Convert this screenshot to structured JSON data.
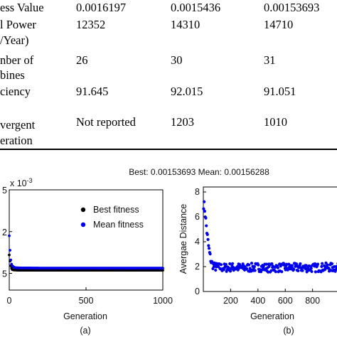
{
  "table": {
    "rows": [
      {
        "label": "ess Value",
        "values": [
          "0.0016197",
          "0.0015436",
          "0.00153693"
        ]
      },
      {
        "label_lines": [
          "l Power",
          "/Year)"
        ],
        "values": [
          "12352",
          "14310",
          "14710"
        ]
      },
      {
        "label_lines": [
          "nber of",
          "bines"
        ],
        "values": [
          "26",
          "30",
          "31"
        ]
      },
      {
        "label": "ciency",
        "values": [
          "91.645",
          "92.015",
          "91.051"
        ]
      },
      {
        "label_lines": [
          "vergent",
          "eration"
        ],
        "values": [
          "Not reported",
          "1203",
          "1010"
        ]
      }
    ]
  },
  "figure_title": "Best: 0.00153693 Mean: 0.00156288",
  "chart_data": [
    {
      "type": "scatter",
      "panel_label": "(a)",
      "xlabel": "Generation",
      "ylabel": "",
      "y_exponent_label": "x 10",
      "y_exponent": "-3",
      "xlim": [
        0,
        1000
      ],
      "ylim": [
        1.3,
        2.5
      ],
      "xticks": [
        "0",
        "500",
        "1000"
      ],
      "yticks": [
        "5",
        "2",
        "5"
      ],
      "legend": {
        "position": "top-right",
        "entries": [
          "Best fitness",
          "Mean fitness"
        ]
      },
      "colors": {
        "best": "#000000",
        "mean": "#0000ee"
      },
      "series": [
        {
          "name": "Best fitness",
          "x": [
            0,
            3,
            6,
            10,
            15,
            20,
            30,
            40,
            60,
            80,
            100,
            150,
            200,
            300,
            400,
            500,
            600,
            700,
            800,
            900,
            1000
          ],
          "y": [
            1.72,
            1.68,
            1.63,
            1.59,
            1.56,
            1.545,
            1.54,
            1.54,
            1.538,
            1.538,
            1.537,
            1.537,
            1.537,
            1.537,
            1.537,
            1.537,
            1.537,
            1.537,
            1.537,
            1.537,
            1.537
          ]
        },
        {
          "name": "Mean fitness",
          "x": [
            0,
            3,
            6,
            10,
            15,
            20,
            30,
            40,
            60,
            80,
            100,
            150,
            200,
            300,
            400,
            500,
            600,
            700,
            800,
            900,
            1000
          ],
          "y": [
            1.95,
            1.85,
            1.74,
            1.66,
            1.61,
            1.59,
            1.575,
            1.568,
            1.566,
            1.565,
            1.565,
            1.564,
            1.563,
            1.563,
            1.562,
            1.563,
            1.562,
            1.563,
            1.562,
            1.563,
            1.562
          ]
        }
      ]
    },
    {
      "type": "scatter",
      "panel_label": "(b)",
      "xlabel": "Generation",
      "ylabel": "Avergae Distance",
      "xlim": [
        0,
        1010
      ],
      "ylim": [
        0,
        8.4
      ],
      "xticks": [
        200,
        400,
        600,
        800
      ],
      "yticks": [
        0,
        2,
        4,
        6,
        8
      ],
      "colors": {
        "marker": "#0000ee"
      },
      "series": [
        {
          "x": [
            5,
            10,
            15,
            20,
            25,
            30,
            35,
            40,
            45,
            50,
            60,
            80,
            100,
            150,
            200,
            300,
            400,
            500,
            600,
            700,
            800,
            900,
            1000
          ],
          "y": [
            7.0,
            6.6,
            6.1,
            5.5,
            4.9,
            4.4,
            3.9,
            3.5,
            3.1,
            2.8,
            2.3,
            2.0,
            1.95,
            1.9,
            1.95,
            1.9,
            1.95,
            1.9,
            1.92,
            1.92,
            1.9,
            1.95,
            1.9
          ]
        }
      ]
    }
  ]
}
